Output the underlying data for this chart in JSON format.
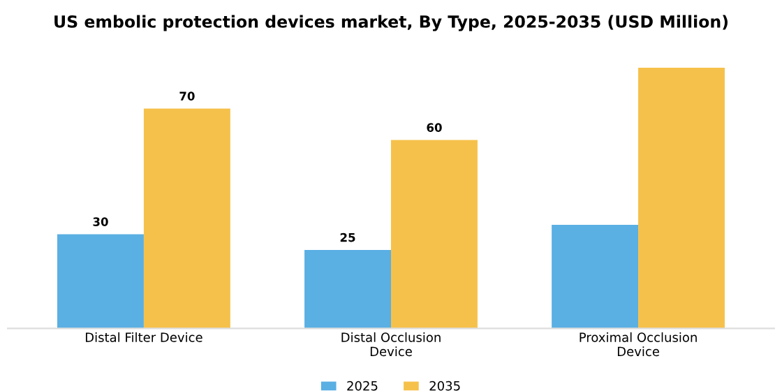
{
  "chart_data": {
    "type": "bar",
    "title": "US embolic protection devices market, By Type, 2025-2035 (USD Million)",
    "categories": [
      "Distal Filter Device",
      "Distal Occlusion\nDevice",
      "Proximal Occlusion\nDevice"
    ],
    "series": [
      {
        "name": "2025",
        "color": "#5aafe3",
        "values": [
          30,
          25,
          33
        ],
        "value_labels": [
          "30",
          "25",
          null
        ]
      },
      {
        "name": "2035",
        "color": "#f6c14b",
        "values": [
          70,
          60,
          83
        ],
        "value_labels": [
          "70",
          "60",
          null
        ]
      }
    ],
    "legend": "bottom",
    "grid": false
  }
}
